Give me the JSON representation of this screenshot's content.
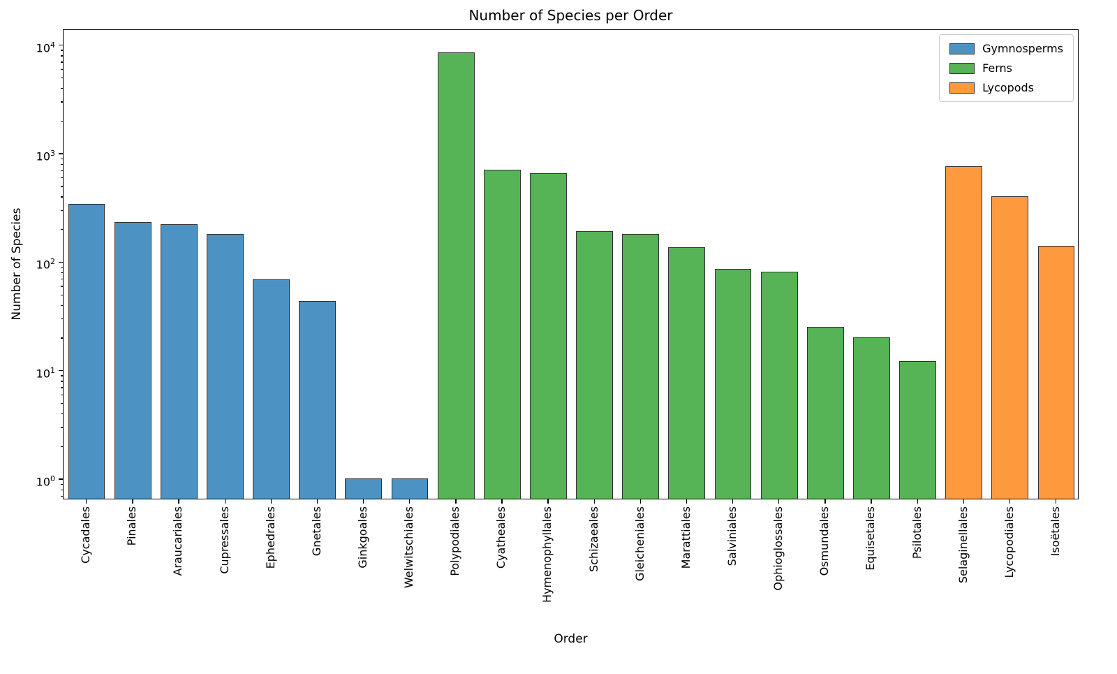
{
  "chart_data": {
    "type": "bar",
    "title": "Number of Species per Order",
    "xlabel": "Order",
    "ylabel": "Number of Species",
    "yscale": "log",
    "ylim": [
      0.65,
      14000
    ],
    "yticks": [
      1,
      10,
      100,
      1000,
      10000
    ],
    "grid": false,
    "legend": {
      "position": "upper right",
      "entries": [
        {
          "label": "Gymnosperms",
          "color": "#4C92C3"
        },
        {
          "label": "Ferns",
          "color": "#56B356"
        },
        {
          "label": "Lycopods",
          "color": "#FF993E"
        }
      ]
    },
    "edge_color": "#333333",
    "categories": [
      "Cycadales",
      "Pinales",
      "Araucariales",
      "Cupressales",
      "Ephedrales",
      "Gnetales",
      "Ginkgoales",
      "Welwitschiales",
      "Polypodiales",
      "Cyatheales",
      "Hymenophyllales",
      "Schizaeales",
      "Gleicheniales",
      "Marattiales",
      "Salviniales",
      "Ophioglossales",
      "Osmundales",
      "Equisetales",
      "Psilotales",
      "Selaginellales",
      "Lycopodiales",
      "Isoëtales"
    ],
    "values": [
      340,
      230,
      220,
      180,
      68,
      43,
      1,
      1,
      8500,
      700,
      650,
      190,
      180,
      135,
      85,
      80,
      25,
      20,
      12,
      750,
      400,
      140
    ],
    "bar_groups": [
      "Gymnosperms",
      "Gymnosperms",
      "Gymnosperms",
      "Gymnosperms",
      "Gymnosperms",
      "Gymnosperms",
      "Gymnosperms",
      "Gymnosperms",
      "Ferns",
      "Ferns",
      "Ferns",
      "Ferns",
      "Ferns",
      "Ferns",
      "Ferns",
      "Ferns",
      "Ferns",
      "Ferns",
      "Ferns",
      "Lycopods",
      "Lycopods",
      "Lycopods"
    ]
  }
}
